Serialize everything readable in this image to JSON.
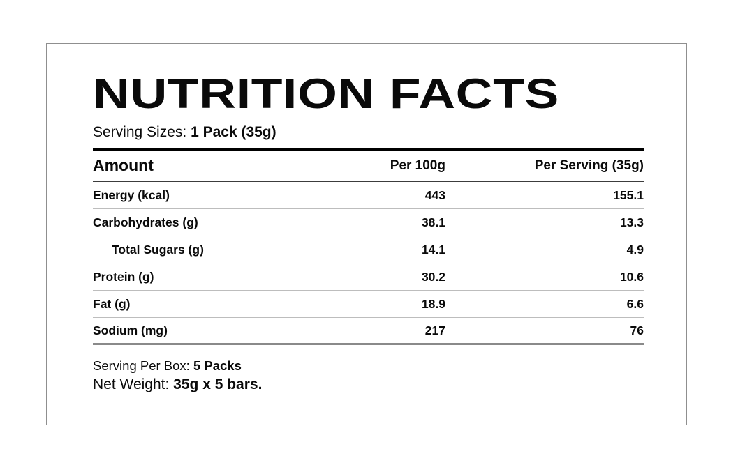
{
  "card": {
    "title": "NUTRITION FACTS",
    "serving_sizes_label": "Serving Sizes: ",
    "serving_sizes_value": "1 Pack (35g)",
    "table": {
      "headers": {
        "amount": "Amount",
        "per_100g": "Per 100g",
        "per_serving": "Per Serving (35g)"
      },
      "rows": [
        {
          "label": "Energy (kcal)",
          "per_100g": "443",
          "per_serving": "155.1"
        },
        {
          "label": "Carbohydrates (g)",
          "per_100g": "38.1",
          "per_serving": "13.3"
        },
        {
          "label": "Total Sugars (g)",
          "per_100g": "14.1",
          "per_serving": "4.9"
        },
        {
          "label": "Protein (g)",
          "per_100g": "30.2",
          "per_serving": "10.6"
        },
        {
          "label": "Fat (g)",
          "per_100g": "18.9",
          "per_serving": "6.6"
        },
        {
          "label": "Sodium (mg)",
          "per_100g": "217",
          "per_serving": "76"
        }
      ]
    },
    "footer": {
      "serving_per_box_label": "Serving Per Box: ",
      "serving_per_box_value": "5 Packs",
      "net_weight_label": "Net Weight: ",
      "net_weight_value": "35g x 5 bars."
    }
  },
  "colors": {
    "text": "#0a0a0a",
    "card_border": "#8f8f8f",
    "thick_rule": "#000000",
    "header_rule": "#3c3c3c",
    "row_rule": "#bdbdbd",
    "bottom_rule": "#8a8a8a"
  }
}
